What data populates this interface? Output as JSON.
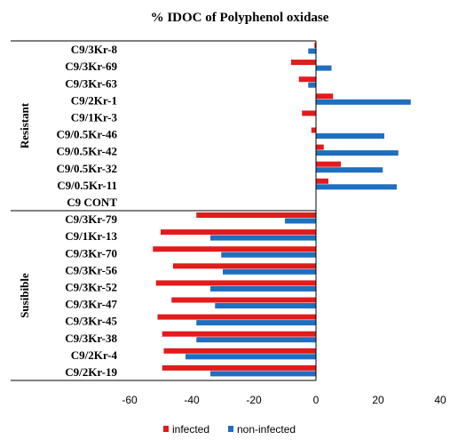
{
  "chart_data": {
    "type": "bar",
    "orientation": "horizontal",
    "title": "% IDOC of Polyphenol oxidase",
    "xlabel": "",
    "ylabel": "",
    "xlim": [
      -60,
      40
    ],
    "x_ticks": [
      -60,
      -40,
      -20,
      0,
      20,
      40
    ],
    "grid": false,
    "legend_position": "bottom",
    "colors": {
      "infected": "#e21b1b",
      "non-infected": "#1f6fbf"
    },
    "groups": [
      {
        "label": "Resistant",
        "categories": [
          "C9/3Kr-8",
          "C9/3Kr-69",
          "C9/3Kr-63",
          "C9/2Kr-1",
          "C9/1Kr-3",
          "C9/0.5Kr-46",
          "C9/0.5Kr-42",
          "C9/0.5Kr-32",
          "C9/0.5Kr-11",
          "C9 CONT"
        ]
      },
      {
        "label": "Susibible",
        "categories": [
          "C9/3Kr-79",
          "C9/1Kr-13",
          "C9/3Kr-70",
          "C9/3Kr-56",
          "C9/3Kr-52",
          "C9/3Kr-47",
          "C9/3Kr-45",
          "C9/3Kr-38",
          "C9/2Kr-4",
          "C9/2Kr-19"
        ]
      }
    ],
    "categories": [
      "C9/3Kr-8",
      "C9/3Kr-69",
      "C9/3Kr-63",
      "C9/2Kr-1",
      "C9/1Kr-3",
      "C9/0.5Kr-46",
      "C9/0.5Kr-42",
      "C9/0.5Kr-32",
      "C9/0.5Kr-11",
      "C9 CONT",
      "C9/3Kr-79",
      "C9/1Kr-13",
      "C9/3Kr-70",
      "C9/3Kr-56",
      "C9/3Kr-52",
      "C9/3Kr-47",
      "C9/3Kr-45",
      "C9/3Kr-38",
      "C9/2Kr-4",
      "C9/2Kr-19"
    ],
    "series": [
      {
        "name": "infected",
        "values": [
          -0.5,
          -8,
          -5.5,
          5.5,
          -4.5,
          -1.5,
          2.5,
          8,
          4,
          0,
          -38.5,
          -50,
          -52.5,
          -46,
          -51.5,
          -46.5,
          -51,
          -49.5,
          -49,
          -49.5
        ]
      },
      {
        "name": "non-infected",
        "values": [
          -2.5,
          5,
          -2.5,
          30.5,
          0,
          22,
          26.5,
          21.5,
          26,
          0,
          -10,
          -34,
          -30.5,
          -30,
          -34,
          -32.5,
          -38.5,
          -38.5,
          -42,
          -34
        ]
      }
    ]
  }
}
